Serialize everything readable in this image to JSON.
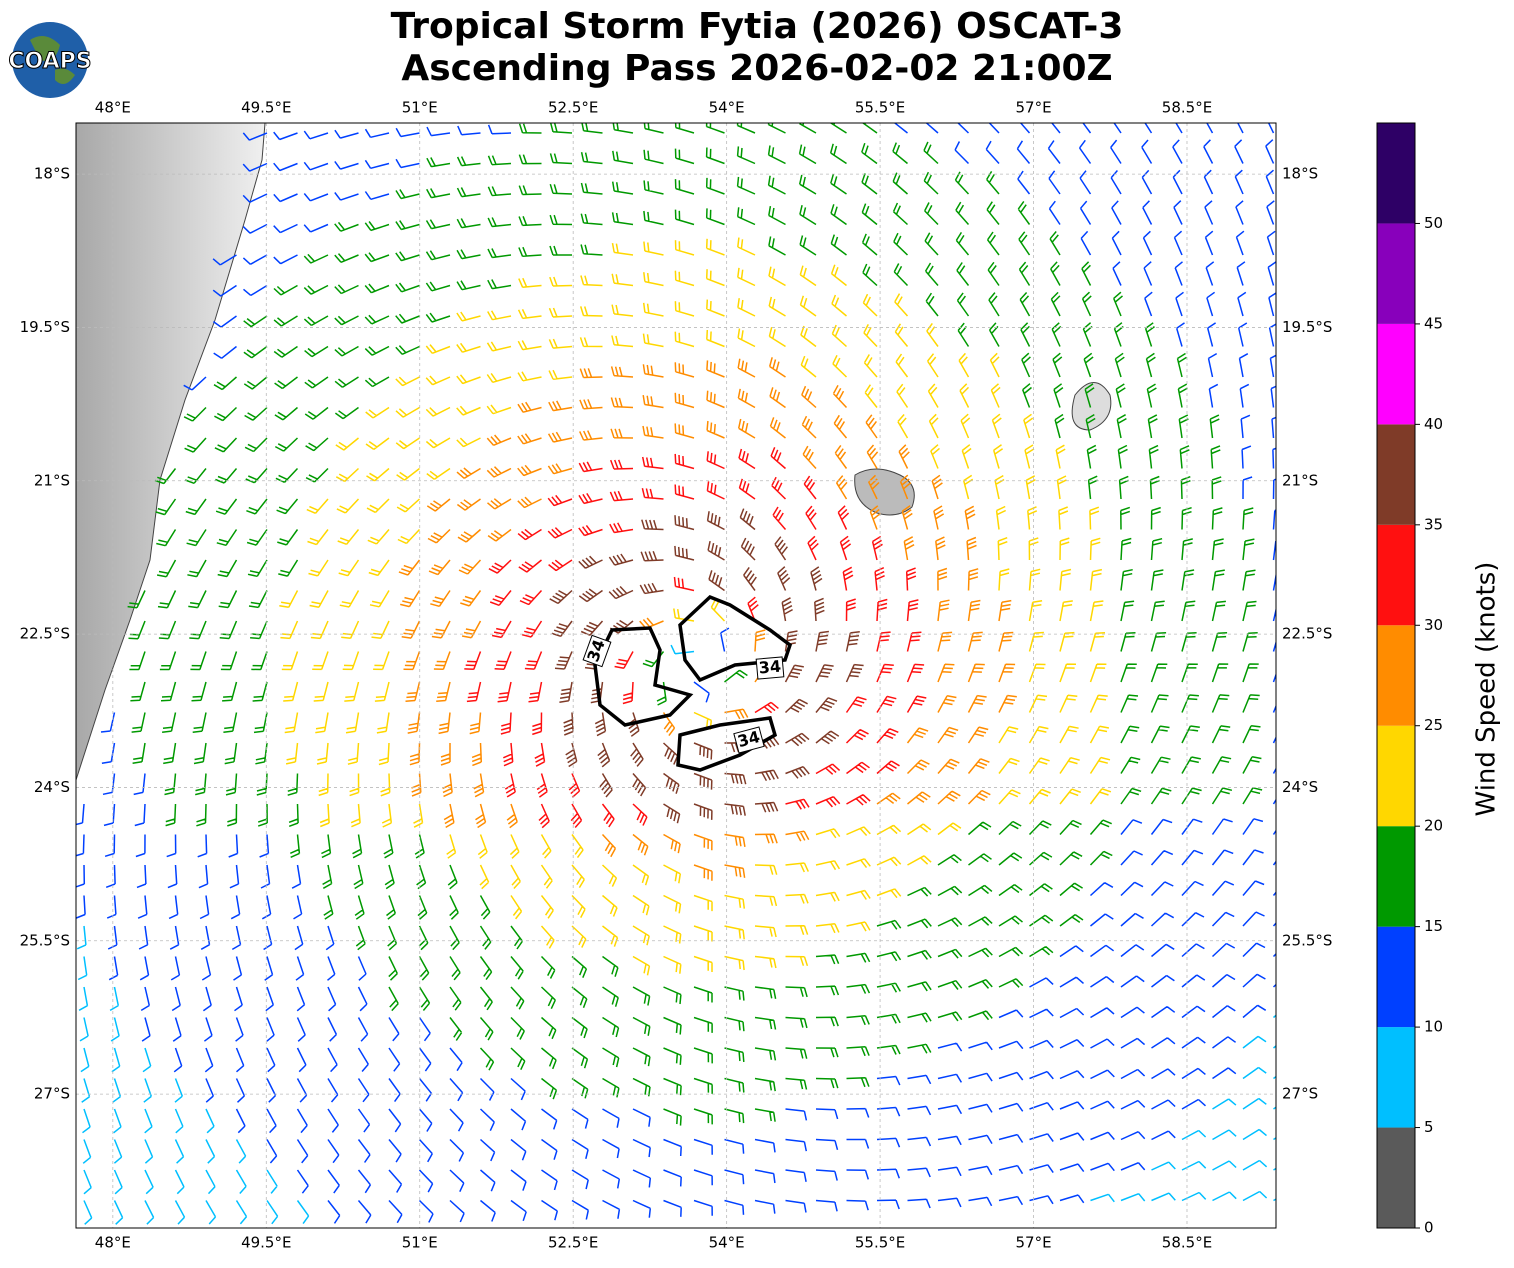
{
  "map": {
    "logo": "COAPS",
    "title": [
      "Tropical Storm Fytia (2026) OSCAT-3",
      "Ascending Pass 2026-02-02 21:00Z"
    ],
    "xlim": [
      47.64,
      59.37
    ],
    "ylim": [
      -17.5,
      -28.31
    ],
    "lon_ticks": [
      {
        "value": 48,
        "label": "48°E"
      },
      {
        "value": 49.5,
        "label": "49.5°E"
      },
      {
        "value": 51,
        "label": "51°E"
      },
      {
        "value": 52.5,
        "label": "52.5°E"
      },
      {
        "value": 54,
        "label": "54°E"
      },
      {
        "value": 55.5,
        "label": "55.5°E"
      },
      {
        "value": 57,
        "label": "57°E"
      },
      {
        "value": 58.5,
        "label": "58.5°E"
      }
    ],
    "lat_ticks": [
      {
        "value": -18,
        "label": "18°S"
      },
      {
        "value": -19.5,
        "label": "19.5°S"
      },
      {
        "value": -21,
        "label": "21°S"
      },
      {
        "value": -22.5,
        "label": "22.5°S"
      },
      {
        "value": -24,
        "label": "24°S"
      },
      {
        "value": -25.5,
        "label": "25.5°S"
      },
      {
        "value": -27,
        "label": "27°S"
      }
    ],
    "contour_labels": [
      "34",
      "34",
      "34"
    ],
    "colorbar": {
      "label": "Wind Speed (knots)",
      "lim": [
        0,
        55
      ],
      "ticks": [
        0,
        5,
        10,
        15,
        20,
        25,
        30,
        35,
        40,
        45,
        50
      ],
      "colors": [
        "#5a5a5a",
        "#00bfff",
        "#0040ff",
        "#009900",
        "#ffd700",
        "#ff8c00",
        "#ff1010",
        "#7f3b28",
        "#ff00ff",
        "#8800bb",
        "#2e0066"
      ]
    }
  }
}
